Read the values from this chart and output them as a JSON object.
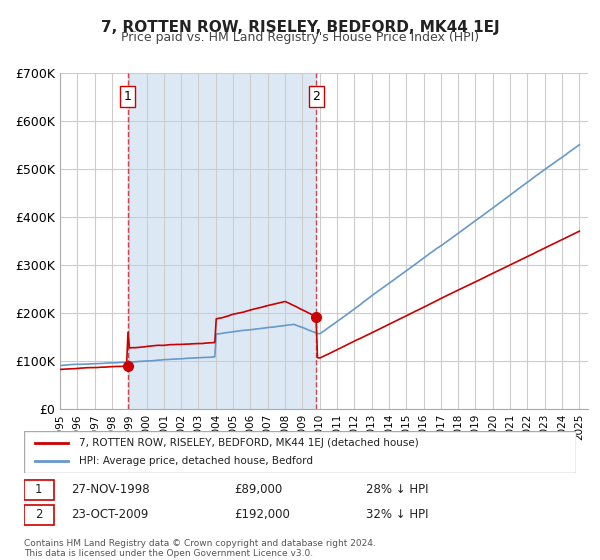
{
  "title": "7, ROTTEN ROW, RISELEY, BEDFORD, MK44 1EJ",
  "subtitle": "Price paid vs. HM Land Registry's House Price Index (HPI)",
  "xlabel": "",
  "ylabel": "",
  "ylim": [
    0,
    700000
  ],
  "yticks": [
    0,
    100000,
    200000,
    300000,
    400000,
    500000,
    600000,
    700000
  ],
  "ytick_labels": [
    "£0",
    "£100K",
    "£200K",
    "£300K",
    "£400K",
    "£500K",
    "£600K",
    "£700K"
  ],
  "xlim_start": 1995.0,
  "xlim_end": 2025.5,
  "background_color": "#ffffff",
  "plot_bg_color": "#ffffff",
  "grid_color": "#cccccc",
  "sale_color": "#cc0000",
  "hpi_color": "#6699cc",
  "shaded_color": "#dce9f5",
  "marker1_x": 1998.9,
  "marker1_y": 89000,
  "marker1_label": "1",
  "marker1_date": "27-NOV-1998",
  "marker1_price": "£89,000",
  "marker1_hpi": "28% ↓ HPI",
  "marker2_x": 2009.8,
  "marker2_y": 192000,
  "marker2_label": "2",
  "marker2_date": "23-OCT-2009",
  "marker2_price": "£192,000",
  "marker2_hpi": "32% ↓ HPI",
  "legend_line1": "7, ROTTEN ROW, RISELEY, BEDFORD, MK44 1EJ (detached house)",
  "legend_line2": "HPI: Average price, detached house, Bedford",
  "footer1": "Contains HM Land Registry data © Crown copyright and database right 2024.",
  "footer2": "This data is licensed under the Open Government Licence v3.0."
}
